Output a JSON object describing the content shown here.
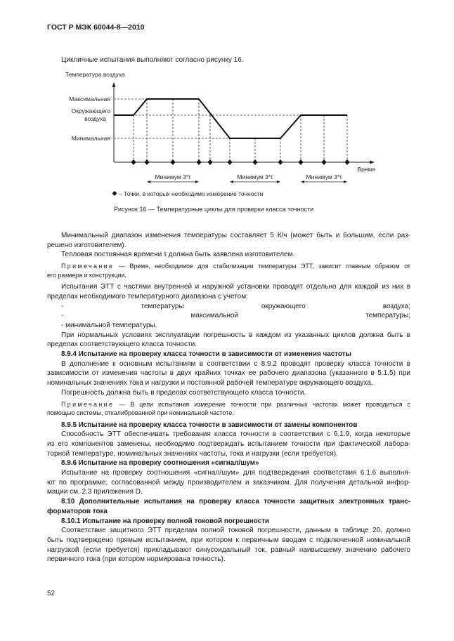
{
  "header": {
    "title": "ГОСТ Р МЭК 60044-8—2010"
  },
  "intro": "Цикличные испытания выполняют согласно рисунку 16.",
  "figure": {
    "y_axis_label": "Температура воздуха",
    "x_axis_label": "Время",
    "levels": {
      "max": "Максимальная",
      "ambient_1": "Окружающего",
      "ambient_2": "воздуха",
      "min": "Минимальная"
    },
    "ranges": [
      "Минимум 3*τ",
      "Минимум 3*τ",
      "Минимум 3*τ"
    ],
    "legend": "– Точки, в которых необходимо измерение точности",
    "legend_icon": "diamond-dot",
    "caption": "Рисунок 16 — Температурные циклы для проверки класса точности"
  },
  "body": {
    "blocks": [
      {
        "type": "paragraph",
        "lines": [
          "Минимальный диапазон изменения температуры составляет 5 К/ч (может быть и большим, если раз-",
          "решено изготовителем)."
        ]
      },
      {
        "type": "paragraph",
        "lines": [
          "Тепловая постоянная времени τ должна быть заявлена изготовителем."
        ]
      },
      {
        "type": "note",
        "prefix": "Примечание",
        "lines": [
          " — Время, необходимое для стабилизации температуры ЭТТ, зависит главным образом от",
          "его размера и конструкции."
        ]
      },
      {
        "type": "paragraph",
        "lines": [
          "Испытания ЭТТ с частями внутренней и наружной установки проводят отдельно для каждой из них в",
          "пределах необходимого температурного диапазона с учетом:"
        ]
      },
      {
        "type": "list",
        "lines": [
          "- температуры окружающего воздуха;",
          "- максимальной температуры;",
          "- минимальной температуры."
        ]
      },
      {
        "type": "paragraph",
        "lines": [
          "При нормальных условиях эксплуатации погрешность в каждом из указанных циклов должна быть в",
          "пределах соответствующего класса точности."
        ]
      },
      {
        "type": "heading",
        "lines": [
          "8.9.4 Испытание на проверку класса точности в зависимости от изменения частоты"
        ]
      },
      {
        "type": "paragraph",
        "lines": [
          "В дополнение к основным испытаниям в соответствии с 8.9.2 проводят проверку класса точности в",
          "зависимости от изменения частоты в двух крайних точках ее рабочего диапазона (указанного в 5.1.5) при",
          "номинальных значениях тока и нагрузки и постоянной рабочей температуре окружающего воздуха."
        ]
      },
      {
        "type": "paragraph",
        "lines": [
          "Погрешность должна быть в пределах соответствующего класса точности."
        ]
      },
      {
        "type": "note",
        "prefix": "Примечание",
        "lines": [
          " — В цепи испытания измерение точности при различных частотах может проводиться с",
          "помощью системы, откалиброванной при номинальной частоте."
        ]
      },
      {
        "type": "heading",
        "lines": [
          "8.9.5 Испытание на проверку класса точности в зависимости от замены компонентов"
        ]
      },
      {
        "type": "paragraph",
        "lines": [
          "Способность ЭТТ обеспечивать требования класса точности в соответствии с 6.1.9, когда некоторые",
          "из его компонентов заменены, необходимо подтверждать испытанием точности при фактической лабора-",
          "торной температуре, номинальных значениях частоты, тока и нагрузки (если требуется)."
        ]
      },
      {
        "type": "heading",
        "lines": [
          "8.9.6 Испытание на проверку соотношения «сигнал/шум»"
        ]
      },
      {
        "type": "paragraph",
        "lines": [
          "Испытание на проверку соотношения «сигнал/шум» для подтверждения соответствия 6.1.6 выполня-",
          "ют по программе, согласованной между производителем и заказчиком. Для получения детальной инфор-",
          "мации см. 2.3 приложения D."
        ]
      },
      {
        "type": "heading",
        "lines": [
          "8.10 Дополнительные испытания на проверку класса точности защитных электронных транс-",
          "форматоров тока"
        ]
      },
      {
        "type": "heading",
        "lines": [
          "8.10.1 Испытание на проверку полной токовой погрешности"
        ]
      },
      {
        "type": "paragraph",
        "lines": [
          "Соответствие защитного ЭТТ пределам полной токовой погрешности, данным в таблице 20, должно",
          "быть подтверждено прямым испытанием, при котором к первичным вводам с подключенной номинальной",
          "нагрузкой (если требуется) прикладывают синусоидальный ток, равный наивысшему значению рабочего",
          "первичного тока (при котором нормирована точность)."
        ]
      }
    ]
  },
  "page_number": "52"
}
